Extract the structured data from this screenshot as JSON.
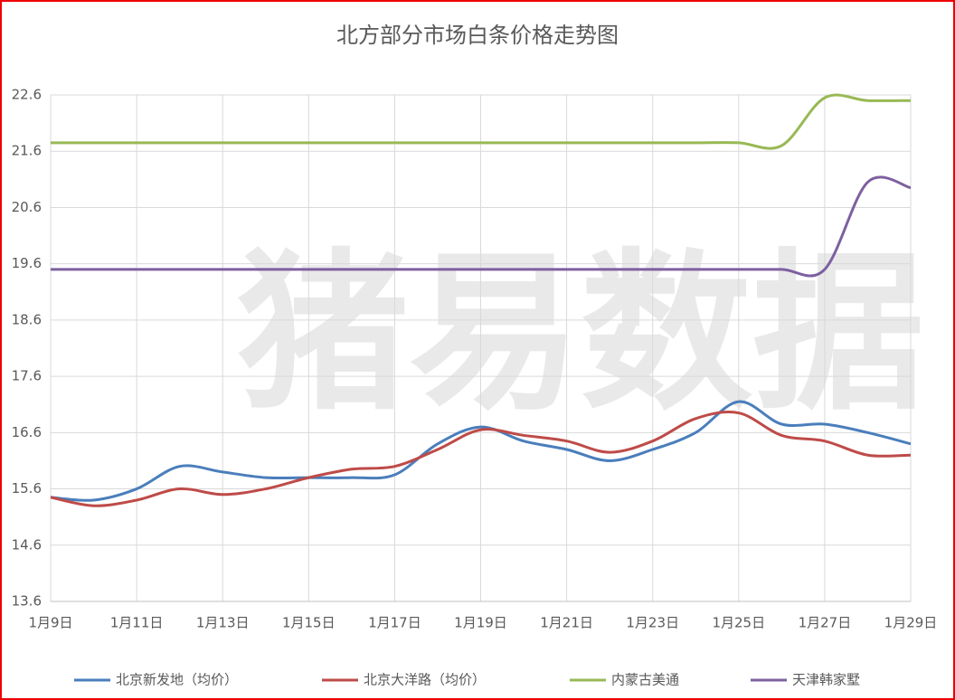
{
  "chart_data": {
    "type": "line",
    "title": "北方部分市场白条价格走势图",
    "watermark": "猪易数据",
    "categories": [
      "1月9日",
      null,
      "1月11日",
      null,
      "1月13日",
      null,
      "1月15日",
      null,
      "1月17日",
      null,
      "1月19日",
      null,
      "1月21日",
      null,
      "1月23日",
      null,
      "1月25日",
      null,
      "1月27日",
      null,
      "1月29日"
    ],
    "ylim": [
      13.6,
      22.6
    ],
    "yticks": [
      13.6,
      14.6,
      15.6,
      16.6,
      17.6,
      18.6,
      19.6,
      20.6,
      21.6,
      22.6
    ],
    "grid": true,
    "smooth": true,
    "legend": "bottom",
    "series": [
      {
        "name": "北京新发地（均价）",
        "color": "#4a7ebb",
        "values": [
          15.45,
          15.4,
          15.6,
          16.0,
          15.9,
          15.8,
          15.8,
          15.8,
          15.85,
          16.4,
          16.7,
          16.45,
          16.3,
          16.1,
          16.3,
          16.6,
          17.15,
          16.75,
          16.75,
          16.6,
          16.4
        ]
      },
      {
        "name": "北京大洋路（均价）",
        "color": "#be4b48",
        "values": [
          15.45,
          15.3,
          15.4,
          15.6,
          15.5,
          15.6,
          15.8,
          15.95,
          16.0,
          16.3,
          16.65,
          16.55,
          16.45,
          16.25,
          16.45,
          16.85,
          16.95,
          16.55,
          16.45,
          16.2,
          16.2
        ]
      },
      {
        "name": "内蒙古美通",
        "color": "#98b954",
        "values": [
          21.75,
          21.75,
          21.75,
          21.75,
          21.75,
          21.75,
          21.75,
          21.75,
          21.75,
          21.75,
          21.75,
          21.75,
          21.75,
          21.75,
          21.75,
          21.75,
          21.75,
          21.7,
          22.55,
          22.5,
          22.5
        ]
      },
      {
        "name": "天津韩家墅",
        "color": "#7d60a0",
        "values": [
          19.5,
          19.5,
          19.5,
          19.5,
          19.5,
          19.5,
          19.5,
          19.5,
          19.5,
          19.5,
          19.5,
          19.5,
          19.5,
          19.5,
          19.5,
          19.5,
          19.5,
          19.5,
          19.5,
          21.05,
          20.95
        ]
      }
    ]
  }
}
